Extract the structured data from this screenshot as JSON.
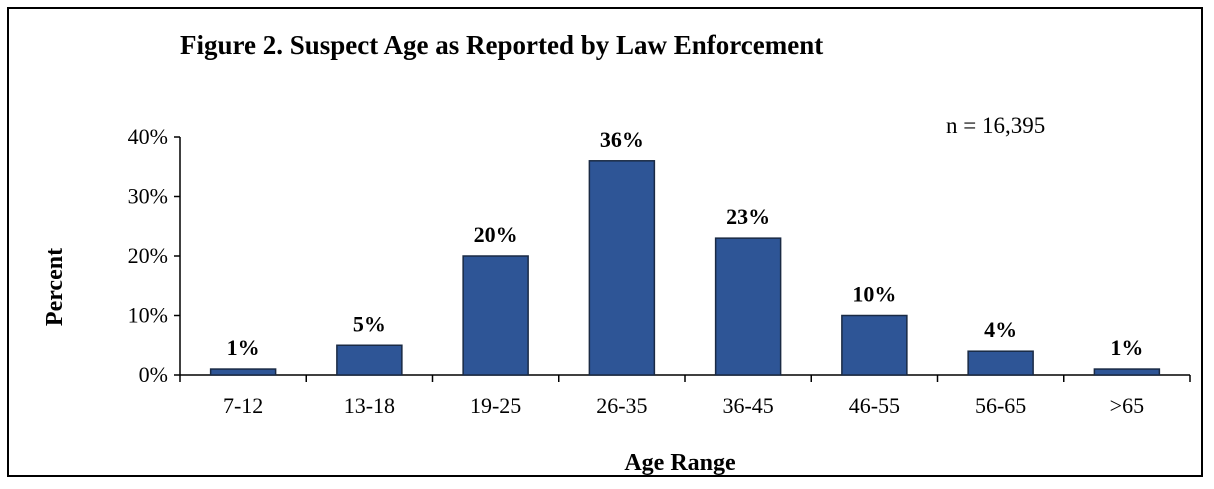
{
  "figure": {
    "title": "Figure 2.  Suspect Age as Reported by Law Enforcement",
    "note": "n = 16,395"
  },
  "chart_data": {
    "type": "bar",
    "categories": [
      "7-12",
      "13-18",
      "19-25",
      "26-35",
      "36-45",
      "46-55",
      "56-65",
      ">65"
    ],
    "values": [
      1,
      5,
      20,
      36,
      23,
      10,
      4,
      1
    ],
    "data_labels": [
      "1%",
      "5%",
      "20%",
      "36%",
      "23%",
      "10%",
      "4%",
      "1%"
    ],
    "title": "Figure 2.  Suspect Age as Reported by Law Enforcement",
    "xlabel": "Age Range",
    "ylabel": "Percent",
    "ylim": [
      0,
      40
    ],
    "yticks": [
      0,
      10,
      20,
      30,
      40
    ],
    "ytick_labels": [
      "0%",
      "10%",
      "20%",
      "30%",
      "40%"
    ],
    "grid": false,
    "bar_color": "#2e5596"
  }
}
